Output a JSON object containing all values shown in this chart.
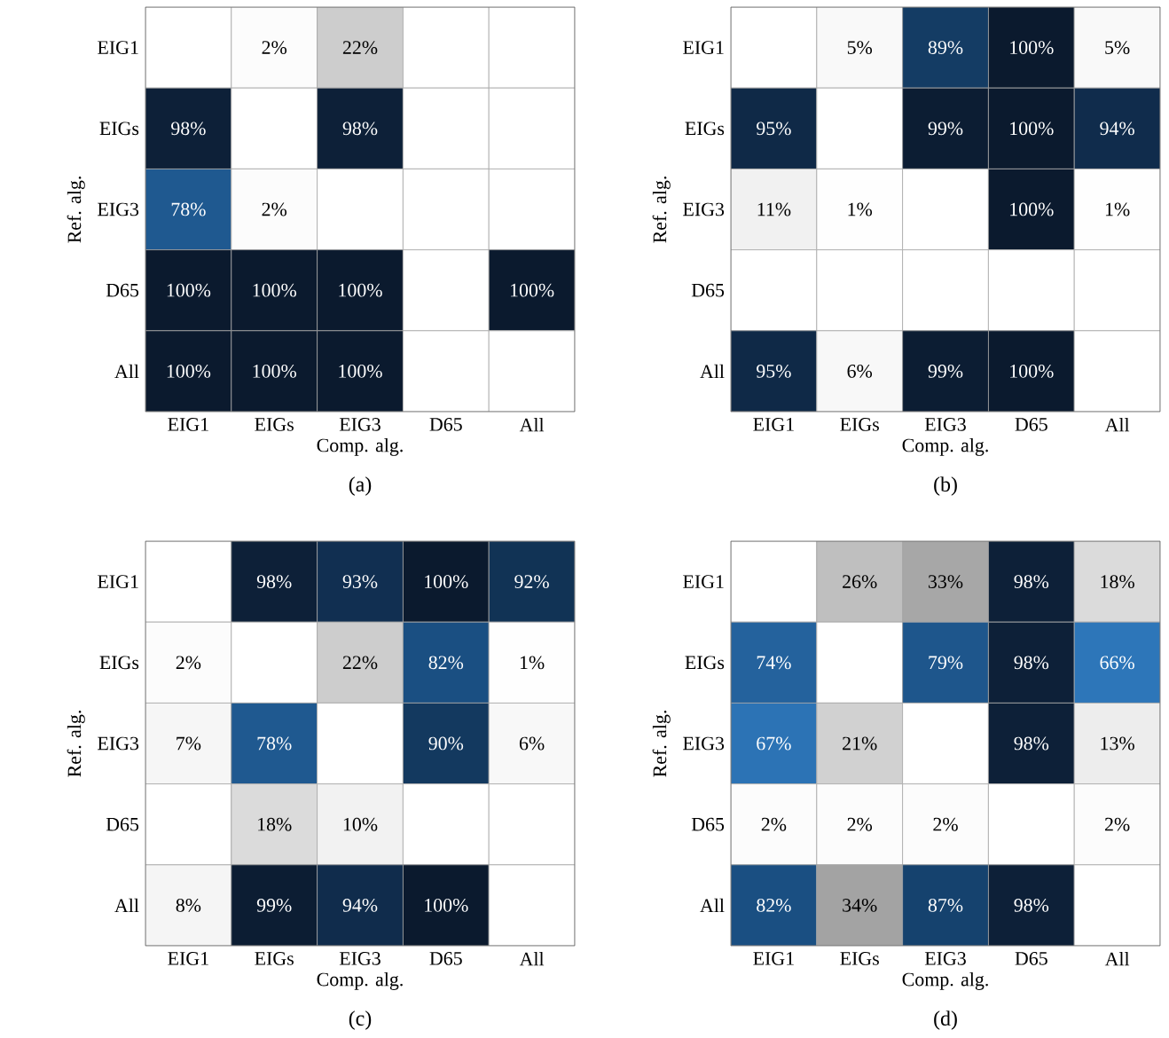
{
  "chart_data": [
    {
      "type": "heatmap",
      "xlabel": "Comp. alg.",
      "ylabel": "Ref. alg.",
      "annotations": [
        "(a)"
      ],
      "categories": [
        "EIG1",
        "EIGs",
        "EIG3",
        "D65",
        "All"
      ],
      "y_categories": [
        "EIG1",
        "EIGs",
        "EIG3",
        "D65",
        "All"
      ],
      "cells": [
        [
          null,
          2,
          22,
          null,
          null
        ],
        [
          98,
          null,
          98,
          null,
          null
        ],
        [
          78,
          2,
          null,
          null,
          null
        ],
        [
          100,
          100,
          100,
          null,
          100
        ],
        [
          100,
          100,
          100,
          null,
          null
        ]
      ],
      "cell_labels": [
        [
          null,
          "2%",
          "22%",
          null,
          null
        ],
        [
          "98%",
          null,
          "98%",
          null,
          null
        ],
        [
          "78%",
          "2%",
          null,
          null,
          null
        ],
        [
          "100%",
          "100%",
          "100%",
          null,
          "100%"
        ],
        [
          "100%",
          "100%",
          "100%",
          null,
          null
        ]
      ]
    },
    {
      "type": "heatmap",
      "xlabel": "Comp. alg.",
      "ylabel": "Ref. alg.",
      "annotations": [
        "(b)"
      ],
      "categories": [
        "EIG1",
        "EIGs",
        "EIG3",
        "D65",
        "All"
      ],
      "y_categories": [
        "EIG1",
        "EIGs",
        "EIG3",
        "D65",
        "All"
      ],
      "cells": [
        [
          null,
          5,
          89,
          100,
          5
        ],
        [
          95,
          null,
          99,
          100,
          94
        ],
        [
          11,
          1,
          null,
          100,
          1
        ],
        [
          null,
          null,
          null,
          null,
          null
        ],
        [
          95,
          6,
          99,
          100,
          null
        ]
      ],
      "cell_labels": [
        [
          null,
          "5%",
          "89%",
          "100%",
          "5%"
        ],
        [
          "95%",
          null,
          "99%",
          "100%",
          "94%"
        ],
        [
          "11%",
          "1%",
          null,
          "100%",
          "1%"
        ],
        [
          null,
          null,
          null,
          null,
          null
        ],
        [
          "95%",
          "6%",
          "99%",
          "100%",
          null
        ]
      ]
    },
    {
      "type": "heatmap",
      "xlabel": "Comp. alg.",
      "ylabel": "Ref. alg.",
      "annotations": [
        "(c)"
      ],
      "categories": [
        "EIG1",
        "EIGs",
        "EIG3",
        "D65",
        "All"
      ],
      "y_categories": [
        "EIG1",
        "EIGs",
        "EIG3",
        "D65",
        "All"
      ],
      "cells": [
        [
          null,
          98,
          93,
          100,
          92
        ],
        [
          2,
          null,
          22,
          82,
          1
        ],
        [
          7,
          78,
          null,
          90,
          6
        ],
        [
          null,
          18,
          10,
          null,
          null
        ],
        [
          8,
          99,
          94,
          100,
          null
        ]
      ],
      "cell_labels": [
        [
          null,
          "98%",
          "93%",
          "100%",
          "92%"
        ],
        [
          "2%",
          null,
          "22%",
          "82%",
          "1%"
        ],
        [
          "7%",
          "78%",
          null,
          "90%",
          "6%"
        ],
        [
          null,
          "18%",
          "10%",
          null,
          null
        ],
        [
          "8%",
          "99%",
          "94%",
          "100%",
          null
        ]
      ]
    },
    {
      "type": "heatmap",
      "xlabel": "Comp. alg.",
      "ylabel": "Ref. alg.",
      "annotations": [
        "(d)"
      ],
      "categories": [
        "EIG1",
        "EIGs",
        "EIG3",
        "D65",
        "All"
      ],
      "y_categories": [
        "EIG1",
        "EIGs",
        "EIG3",
        "D65",
        "All"
      ],
      "cells": [
        [
          null,
          26,
          33,
          98,
          18
        ],
        [
          74,
          null,
          79,
          98,
          66
        ],
        [
          67,
          21,
          null,
          98,
          13
        ],
        [
          2,
          2,
          2,
          null,
          2
        ],
        [
          82,
          34,
          87,
          98,
          null
        ]
      ],
      "cell_labels": [
        [
          null,
          "26%",
          "33%",
          "98%",
          "18%"
        ],
        [
          "74%",
          null,
          "79%",
          "98%",
          "66%"
        ],
        [
          "67%",
          "21%",
          null,
          "98%",
          "13%"
        ],
        [
          "2%",
          "2%",
          "2%",
          null,
          "2%"
        ],
        [
          "82%",
          "34%",
          "87%",
          "98%",
          null
        ]
      ]
    }
  ]
}
